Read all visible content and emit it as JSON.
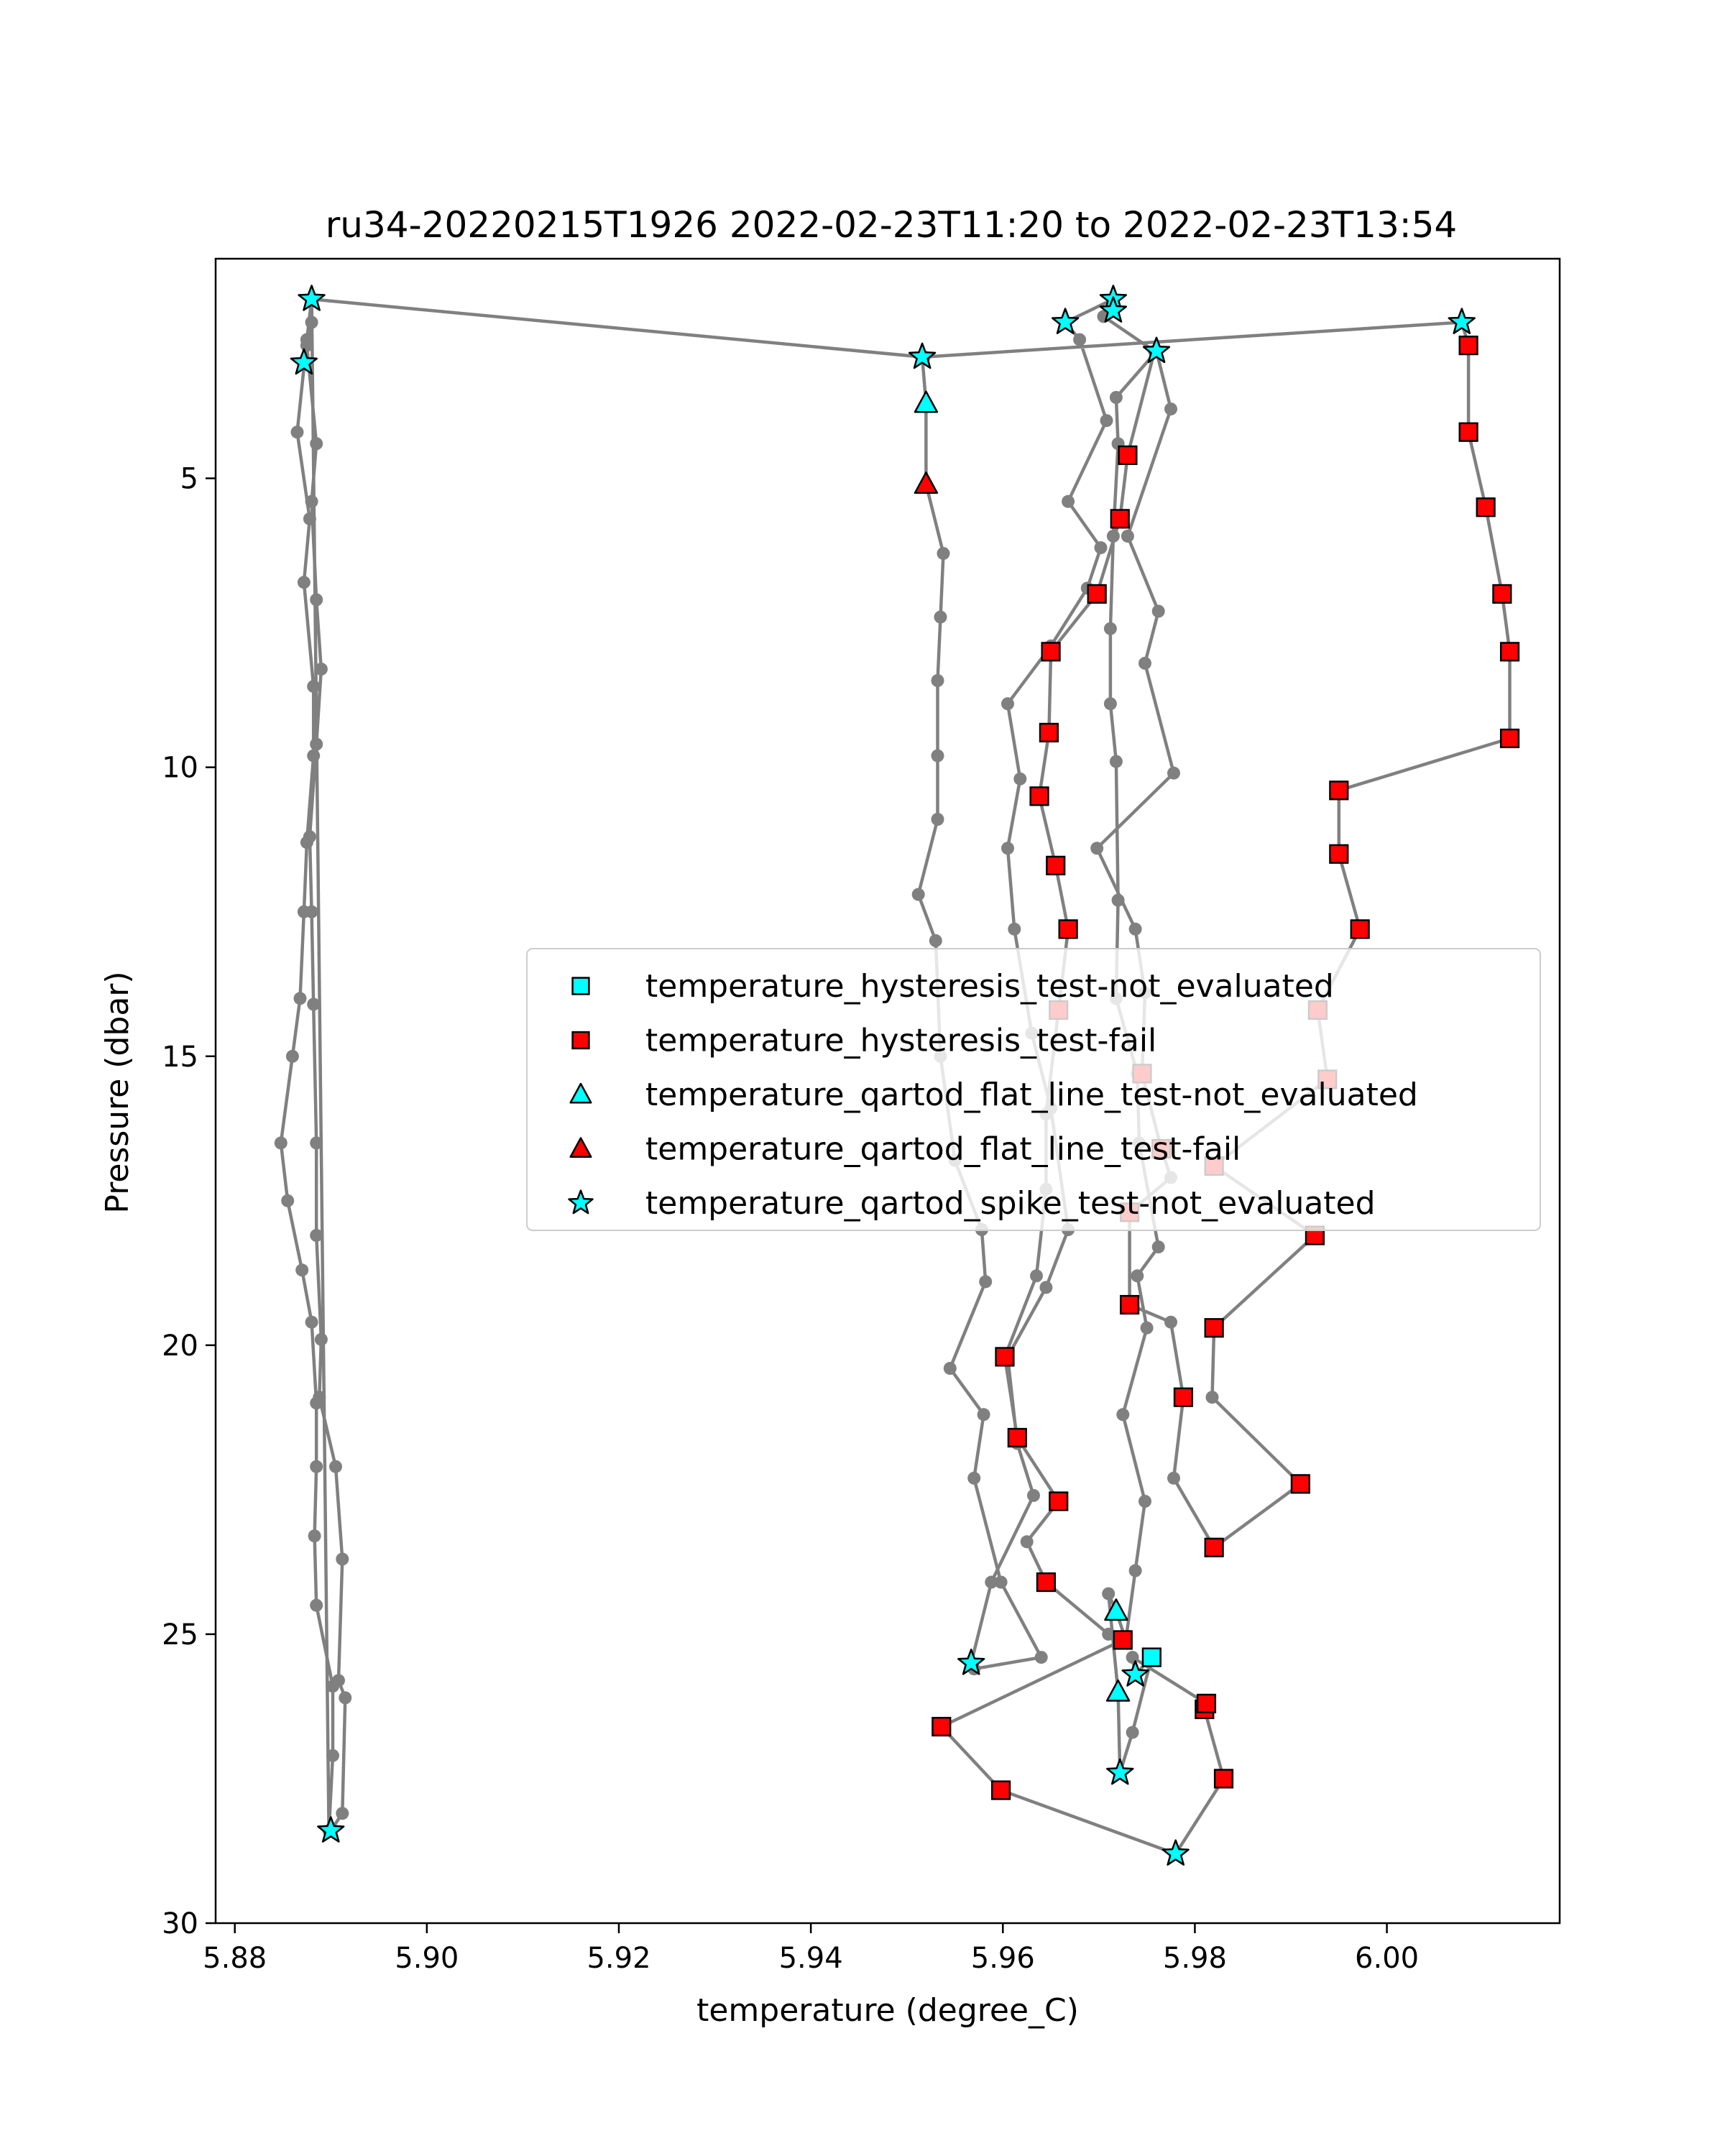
{
  "chart_data": {
    "type": "scatter",
    "title": "ru34-20220215T1926 2022-02-23T11:20 to 2022-02-23T13:54",
    "xlabel": "temperature (degree_C)",
    "ylabel": "Pressure (dbar)",
    "xlim": [
      5.878,
      6.018
    ],
    "ylim": [
      30,
      1.2
    ],
    "y_inverted": true,
    "x_ticks": [
      5.88,
      5.9,
      5.92,
      5.94,
      5.96,
      5.98,
      6.0
    ],
    "x_tick_labels": [
      "5.88",
      "5.90",
      "5.92",
      "5.94",
      "5.96",
      "5.98",
      "6.00"
    ],
    "y_ticks": [
      5,
      10,
      15,
      20,
      25,
      30
    ],
    "y_tick_labels": [
      "5",
      "10",
      "15",
      "20",
      "25",
      "30"
    ],
    "grid": false,
    "legend_placement": "center-right",
    "colors": {
      "profile_line": "#808080",
      "cyan": "#00ffff",
      "red": "#ff0000",
      "edge": "#000000"
    },
    "profile": {
      "name": "temperature",
      "points": [
        {
          "x": 5.89,
          "y": 28.4
        },
        {
          "x": 5.8912,
          "y": 28.1
        },
        {
          "x": 5.8915,
          "y": 26.1
        },
        {
          "x": 5.8908,
          "y": 25.8
        },
        {
          "x": 5.8912,
          "y": 23.7
        },
        {
          "x": 5.8905,
          "y": 22.1
        },
        {
          "x": 5.8888,
          "y": 20.9
        },
        {
          "x": 5.889,
          "y": 19.9
        },
        {
          "x": 5.8885,
          "y": 18.1
        },
        {
          "x": 5.8885,
          "y": 16.5
        },
        {
          "x": 5.8882,
          "y": 14.1
        },
        {
          "x": 5.888,
          "y": 12.5
        },
        {
          "x": 5.8878,
          "y": 11.2
        },
        {
          "x": 5.8885,
          "y": 9.6
        },
        {
          "x": 5.889,
          "y": 8.3
        },
        {
          "x": 5.8885,
          "y": 7.1
        },
        {
          "x": 5.888,
          "y": 5.4
        },
        {
          "x": 5.8885,
          "y": 4.4
        },
        {
          "x": 5.8875,
          "y": 2.7
        },
        {
          "x": 5.8872,
          "y": 3.0
        },
        {
          "x": 5.888,
          "y": 2.3
        },
        {
          "x": 5.888,
          "y": 1.9
        },
        {
          "x": 5.8875,
          "y": 2.6
        },
        {
          "x": 5.8865,
          "y": 4.2
        },
        {
          "x": 5.8878,
          "y": 5.7
        },
        {
          "x": 5.8872,
          "y": 6.8
        },
        {
          "x": 5.8882,
          "y": 8.6
        },
        {
          "x": 5.8882,
          "y": 9.8
        },
        {
          "x": 5.8875,
          "y": 11.3
        },
        {
          "x": 5.8872,
          "y": 12.5
        },
        {
          "x": 5.8868,
          "y": 14.0
        },
        {
          "x": 5.886,
          "y": 15.0
        },
        {
          "x": 5.8848,
          "y": 16.5
        },
        {
          "x": 5.8855,
          "y": 17.5
        },
        {
          "x": 5.887,
          "y": 18.7
        },
        {
          "x": 5.888,
          "y": 19.6
        },
        {
          "x": 5.8885,
          "y": 21.0
        },
        {
          "x": 5.8885,
          "y": 22.1
        },
        {
          "x": 5.8883,
          "y": 23.3
        },
        {
          "x": 5.8885,
          "y": 24.5
        },
        {
          "x": 5.8902,
          "y": 25.9
        },
        {
          "x": 5.8902,
          "y": 27.1
        },
        {
          "x": 5.8898,
          "y": 28.4
        },
        {
          "x": 5.888,
          "y": 1.9
        },
        {
          "x": 5.9516,
          "y": 2.9
        },
        {
          "x": 5.952,
          "y": 3.7
        },
        {
          "x": 5.952,
          "y": 5.1
        },
        {
          "x": 5.9538,
          "y": 6.3
        },
        {
          "x": 5.9535,
          "y": 7.4
        },
        {
          "x": 5.9532,
          "y": 8.5
        },
        {
          "x": 5.9532,
          "y": 9.8
        },
        {
          "x": 5.9532,
          "y": 10.9
        },
        {
          "x": 5.9512,
          "y": 12.2
        },
        {
          "x": 5.953,
          "y": 13.0
        },
        {
          "x": 5.9535,
          "y": 15.0
        },
        {
          "x": 5.955,
          "y": 16.8
        },
        {
          "x": 5.9578,
          "y": 18.0
        },
        {
          "x": 5.9582,
          "y": 18.9
        },
        {
          "x": 5.9545,
          "y": 20.4
        },
        {
          "x": 5.958,
          "y": 21.2
        },
        {
          "x": 5.957,
          "y": 22.3
        },
        {
          "x": 5.9598,
          "y": 24.1
        },
        {
          "x": 5.964,
          "y": 25.4
        },
        {
          "x": 5.957,
          "y": 25.6
        },
        {
          "x": 5.9567,
          "y": 25.5
        },
        {
          "x": 5.9588,
          "y": 24.1
        },
        {
          "x": 5.9632,
          "y": 22.6
        },
        {
          "x": 5.9615,
          "y": 21.7
        },
        {
          "x": 5.9605,
          "y": 20.2
        },
        {
          "x": 5.9645,
          "y": 19.0
        },
        {
          "x": 5.9668,
          "y": 18.0
        },
        {
          "x": 5.965,
          "y": 15.9
        },
        {
          "x": 5.963,
          "y": 14.6
        },
        {
          "x": 5.9612,
          "y": 12.8
        },
        {
          "x": 5.9605,
          "y": 11.4
        },
        {
          "x": 5.9618,
          "y": 10.2
        },
        {
          "x": 5.9605,
          "y": 8.9
        },
        {
          "x": 5.965,
          "y": 7.9
        },
        {
          "x": 5.9688,
          "y": 6.9
        },
        {
          "x": 5.9702,
          "y": 6.2
        },
        {
          "x": 5.9668,
          "y": 5.4
        },
        {
          "x": 5.9708,
          "y": 4.0
        },
        {
          "x": 5.968,
          "y": 2.6
        },
        {
          "x": 5.9665,
          "y": 2.3
        },
        {
          "x": 5.9715,
          "y": 1.9
        },
        {
          "x": 5.9715,
          "y": 2.1
        },
        {
          "x": 5.9705,
          "y": 2.2
        },
        {
          "x": 5.9758,
          "y": 2.8
        },
        {
          "x": 5.973,
          "y": 4.6
        },
        {
          "x": 5.9722,
          "y": 5.7
        },
        {
          "x": 5.9698,
          "y": 7.0
        },
        {
          "x": 5.965,
          "y": 8.0
        },
        {
          "x": 5.9648,
          "y": 9.4
        },
        {
          "x": 5.9638,
          "y": 10.5
        },
        {
          "x": 5.9655,
          "y": 11.7
        },
        {
          "x": 5.9668,
          "y": 12.8
        },
        {
          "x": 5.9658,
          "y": 14.2
        },
        {
          "x": 5.9645,
          "y": 16.0
        },
        {
          "x": 5.9645,
          "y": 17.3
        },
        {
          "x": 5.9635,
          "y": 18.8
        },
        {
          "x": 5.9602,
          "y": 20.2
        },
        {
          "x": 5.9615,
          "y": 21.6
        },
        {
          "x": 5.9658,
          "y": 22.7
        },
        {
          "x": 5.9625,
          "y": 23.4
        },
        {
          "x": 5.9645,
          "y": 24.1
        },
        {
          "x": 5.971,
          "y": 25.0
        },
        {
          "x": 5.9725,
          "y": 25.1
        },
        {
          "x": 5.9536,
          "y": 26.6
        },
        {
          "x": 5.9598,
          "y": 27.7
        },
        {
          "x": 5.978,
          "y": 28.8
        },
        {
          "x": 5.983,
          "y": 27.5
        },
        {
          "x": 5.981,
          "y": 26.3
        },
        {
          "x": 5.9812,
          "y": 26.2
        },
        {
          "x": 5.9735,
          "y": 25.4
        },
        {
          "x": 5.9738,
          "y": 25.7
        },
        {
          "x": 5.9755,
          "y": 25.4
        },
        {
          "x": 5.9735,
          "y": 26.7
        },
        {
          "x": 5.9722,
          "y": 27.4
        },
        {
          "x": 5.972,
          "y": 26.0
        },
        {
          "x": 5.971,
          "y": 24.3
        },
        {
          "x": 5.9718,
          "y": 24.6
        },
        {
          "x": 5.9728,
          "y": 25.1
        },
        {
          "x": 5.9738,
          "y": 23.9
        },
        {
          "x": 5.9748,
          "y": 22.7
        },
        {
          "x": 5.9725,
          "y": 21.2
        },
        {
          "x": 5.975,
          "y": 19.7
        },
        {
          "x": 5.974,
          "y": 18.8
        },
        {
          "x": 5.9762,
          "y": 18.3
        },
        {
          "x": 5.9742,
          "y": 16.5
        },
        {
          "x": 5.974,
          "y": 15.3
        },
        {
          "x": 5.9718,
          "y": 14.0
        },
        {
          "x": 5.972,
          "y": 12.3
        },
        {
          "x": 5.9718,
          "y": 9.9
        },
        {
          "x": 5.9712,
          "y": 8.9
        },
        {
          "x": 5.9712,
          "y": 7.6
        },
        {
          "x": 5.9715,
          "y": 6.0
        },
        {
          "x": 5.972,
          "y": 4.4
        },
        {
          "x": 5.9718,
          "y": 3.6
        },
        {
          "x": 5.976,
          "y": 2.8
        },
        {
          "x": 5.9775,
          "y": 3.8
        },
        {
          "x": 5.973,
          "y": 6.0
        },
        {
          "x": 5.9762,
          "y": 7.3
        },
        {
          "x": 5.9748,
          "y": 8.2
        },
        {
          "x": 5.9778,
          "y": 10.1
        },
        {
          "x": 5.9698,
          "y": 11.4
        },
        {
          "x": 5.9738,
          "y": 12.8
        },
        {
          "x": 5.9748,
          "y": 13.9
        },
        {
          "x": 5.9745,
          "y": 15.3
        },
        {
          "x": 5.9765,
          "y": 16.6
        },
        {
          "x": 5.9775,
          "y": 17.1
        },
        {
          "x": 5.9732,
          "y": 17.7
        },
        {
          "x": 5.9732,
          "y": 19.3
        },
        {
          "x": 5.9775,
          "y": 19.6
        },
        {
          "x": 5.9788,
          "y": 20.9
        },
        {
          "x": 5.9778,
          "y": 22.3
        },
        {
          "x": 5.982,
          "y": 23.5
        },
        {
          "x": 5.991,
          "y": 22.4
        },
        {
          "x": 5.9818,
          "y": 20.9
        },
        {
          "x": 5.982,
          "y": 19.7
        },
        {
          "x": 5.9925,
          "y": 18.1
        },
        {
          "x": 5.982,
          "y": 16.9
        },
        {
          "x": 5.9938,
          "y": 15.4
        },
        {
          "x": 5.9928,
          "y": 14.2
        },
        {
          "x": 5.9972,
          "y": 12.8
        },
        {
          "x": 5.995,
          "y": 11.5
        },
        {
          "x": 5.995,
          "y": 10.4
        },
        {
          "x": 6.0128,
          "y": 9.5
        },
        {
          "x": 6.0128,
          "y": 8.0
        },
        {
          "x": 6.012,
          "y": 7.0
        },
        {
          "x": 6.0103,
          "y": 5.5
        },
        {
          "x": 6.0085,
          "y": 4.2
        },
        {
          "x": 6.0085,
          "y": 2.7
        },
        {
          "x": 6.0078,
          "y": 2.3
        },
        {
          "x": 5.9518,
          "y": 2.9
        }
      ]
    },
    "series": [
      {
        "name": "temperature_hysteresis_test-not_evaluated",
        "marker": "square",
        "color": "#00ffff",
        "points": [
          {
            "x": 5.9755,
            "y": 25.4
          }
        ]
      },
      {
        "name": "temperature_hysteresis_test-fail",
        "marker": "square",
        "color": "#ff0000",
        "points": [
          {
            "x": 5.973,
            "y": 4.6
          },
          {
            "x": 5.9722,
            "y": 5.7
          },
          {
            "x": 5.9698,
            "y": 7.0
          },
          {
            "x": 5.965,
            "y": 8.0
          },
          {
            "x": 5.9648,
            "y": 9.4
          },
          {
            "x": 5.9638,
            "y": 10.5
          },
          {
            "x": 5.9655,
            "y": 11.7
          },
          {
            "x": 5.9668,
            "y": 12.8
          },
          {
            "x": 5.9658,
            "y": 14.2
          },
          {
            "x": 5.9602,
            "y": 20.2
          },
          {
            "x": 5.9615,
            "y": 21.6
          },
          {
            "x": 5.9658,
            "y": 22.7
          },
          {
            "x": 5.9645,
            "y": 24.1
          },
          {
            "x": 5.9725,
            "y": 25.1
          },
          {
            "x": 5.9536,
            "y": 26.6
          },
          {
            "x": 5.9598,
            "y": 27.7
          },
          {
            "x": 5.983,
            "y": 27.5
          },
          {
            "x": 5.981,
            "y": 26.3
          },
          {
            "x": 5.9812,
            "y": 26.2
          },
          {
            "x": 5.9745,
            "y": 15.3
          },
          {
            "x": 5.9765,
            "y": 16.6
          },
          {
            "x": 5.9732,
            "y": 17.7
          },
          {
            "x": 5.9732,
            "y": 19.3
          },
          {
            "x": 5.9788,
            "y": 20.9
          },
          {
            "x": 5.982,
            "y": 23.5
          },
          {
            "x": 5.991,
            "y": 22.4
          },
          {
            "x": 5.982,
            "y": 19.7
          },
          {
            "x": 5.9925,
            "y": 18.1
          },
          {
            "x": 5.982,
            "y": 16.9
          },
          {
            "x": 5.9938,
            "y": 15.4
          },
          {
            "x": 5.9928,
            "y": 14.2
          },
          {
            "x": 5.9972,
            "y": 12.8
          },
          {
            "x": 5.995,
            "y": 11.5
          },
          {
            "x": 5.995,
            "y": 10.4
          },
          {
            "x": 6.0128,
            "y": 9.5
          },
          {
            "x": 6.0128,
            "y": 8.0
          },
          {
            "x": 6.012,
            "y": 7.0
          },
          {
            "x": 6.0103,
            "y": 5.5
          },
          {
            "x": 6.0085,
            "y": 4.2
          },
          {
            "x": 6.0085,
            "y": 2.7
          }
        ]
      },
      {
        "name": "temperature_qartod_flat_line_test-not_evaluated",
        "marker": "triangle",
        "color": "#00ffff",
        "points": [
          {
            "x": 5.952,
            "y": 3.7
          },
          {
            "x": 5.9718,
            "y": 24.6
          },
          {
            "x": 5.972,
            "y": 26.0
          }
        ]
      },
      {
        "name": "temperature_qartod_flat_line_test-fail",
        "marker": "triangle",
        "color": "#ff0000",
        "points": [
          {
            "x": 5.952,
            "y": 5.1
          }
        ]
      },
      {
        "name": "temperature_qartod_spike_test-not_evaluated",
        "marker": "star",
        "color": "#00ffff",
        "points": [
          {
            "x": 5.888,
            "y": 1.9
          },
          {
            "x": 5.8872,
            "y": 3.0
          },
          {
            "x": 5.89,
            "y": 28.4
          },
          {
            "x": 5.9516,
            "y": 2.9
          },
          {
            "x": 5.9665,
            "y": 2.3
          },
          {
            "x": 5.9715,
            "y": 1.9
          },
          {
            "x": 5.9715,
            "y": 2.1
          },
          {
            "x": 5.976,
            "y": 2.8
          },
          {
            "x": 6.0078,
            "y": 2.3
          },
          {
            "x": 5.9567,
            "y": 25.5
          },
          {
            "x": 5.9738,
            "y": 25.7
          },
          {
            "x": 5.9722,
            "y": 27.4
          },
          {
            "x": 5.978,
            "y": 28.8
          }
        ]
      }
    ]
  }
}
